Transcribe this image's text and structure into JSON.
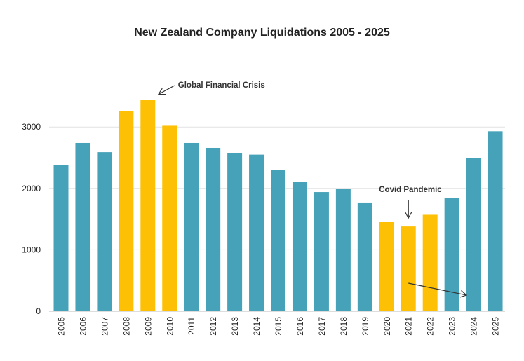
{
  "chart_data": {
    "type": "bar",
    "title": "New Zealand Company Liquidations 2005 - 2025",
    "xlabel": "",
    "ylabel": "",
    "ylim": [
      0,
      3550
    ],
    "yticks": [
      0,
      1000,
      2000,
      3000
    ],
    "grid": true,
    "categories": [
      "2005",
      "2006",
      "2007",
      "2008",
      "2009",
      "2010",
      "2011",
      "2012",
      "2013",
      "2014",
      "2015",
      "2016",
      "2017",
      "2018",
      "2019",
      "2020",
      "2021",
      "2022",
      "2023",
      "2024",
      "2025"
    ],
    "values": [
      2380,
      2740,
      2590,
      3260,
      3440,
      3020,
      2740,
      2660,
      2580,
      2550,
      2300,
      2110,
      1940,
      1990,
      1770,
      1450,
      1380,
      1570,
      1840,
      2500,
      2930
    ],
    "highlight": [
      "2008",
      "2009",
      "2010",
      "2020",
      "2021",
      "2022"
    ],
    "colors": {
      "default": "#46a2b9",
      "highlight": "#fec005",
      "grid": "#e2e2e2",
      "axis": "#bbbbbb",
      "arrow": "#333333"
    },
    "annotations": [
      {
        "text": "Global Financial Crisis",
        "category": "2009"
      },
      {
        "text": "Covid Pandemic",
        "category": "2021"
      }
    ]
  }
}
